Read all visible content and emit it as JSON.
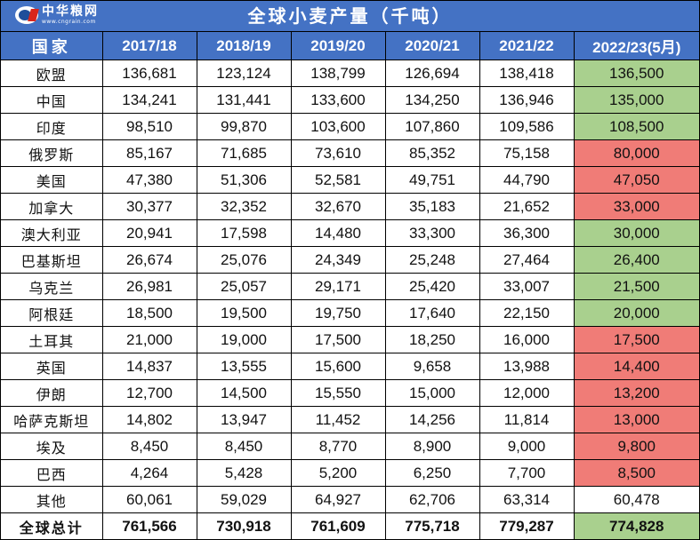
{
  "logo": {
    "name_cn": "中华粮网",
    "url_text": "www.cngrain.com"
  },
  "title": "全球小麦产量（千吨）",
  "colors": {
    "header_bg": "#4472c4",
    "increase_green": "#a9d08e",
    "decrease_red": "#f07c77"
  },
  "table": {
    "headers": [
      "国家",
      "2017/18",
      "2018/19",
      "2019/20",
      "2020/21",
      "2021/22",
      "2022/23(5月)"
    ],
    "rows": [
      {
        "country": "欧盟",
        "values": [
          "136,681",
          "123,124",
          "138,799",
          "126,694",
          "138,418",
          "136,500"
        ],
        "highlight": "green"
      },
      {
        "country": "中国",
        "values": [
          "134,241",
          "131,441",
          "133,600",
          "134,250",
          "136,946",
          "135,000"
        ],
        "highlight": "green"
      },
      {
        "country": "印度",
        "values": [
          "98,510",
          "99,870",
          "103,600",
          "107,860",
          "109,586",
          "108,500"
        ],
        "highlight": "green"
      },
      {
        "country": "俄罗斯",
        "values": [
          "85,167",
          "71,685",
          "73,610",
          "85,352",
          "75,158",
          "80,000"
        ],
        "highlight": "red"
      },
      {
        "country": "美国",
        "values": [
          "47,380",
          "51,306",
          "52,581",
          "49,751",
          "44,790",
          "47,050"
        ],
        "highlight": "red"
      },
      {
        "country": "加拿大",
        "values": [
          "30,377",
          "32,352",
          "32,670",
          "35,183",
          "21,652",
          "33,000"
        ],
        "highlight": "red"
      },
      {
        "country": "澳大利亚",
        "values": [
          "20,941",
          "17,598",
          "14,480",
          "33,300",
          "36,300",
          "30,000"
        ],
        "highlight": "green"
      },
      {
        "country": "巴基斯坦",
        "values": [
          "26,674",
          "25,076",
          "24,349",
          "25,248",
          "27,464",
          "26,400"
        ],
        "highlight": "green"
      },
      {
        "country": "乌克兰",
        "values": [
          "26,981",
          "25,057",
          "29,171",
          "25,420",
          "33,007",
          "21,500"
        ],
        "highlight": "green"
      },
      {
        "country": "阿根廷",
        "values": [
          "18,500",
          "19,500",
          "19,750",
          "17,640",
          "22,150",
          "20,000"
        ],
        "highlight": "green"
      },
      {
        "country": "土耳其",
        "values": [
          "21,000",
          "19,000",
          "17,500",
          "18,250",
          "16,000",
          "17,500"
        ],
        "highlight": "red"
      },
      {
        "country": "英国",
        "values": [
          "14,837",
          "13,555",
          "15,600",
          "9,658",
          "13,988",
          "14,400"
        ],
        "highlight": "red"
      },
      {
        "country": "伊朗",
        "values": [
          "12,700",
          "14,500",
          "15,550",
          "15,000",
          "12,000",
          "13,200"
        ],
        "highlight": "red"
      },
      {
        "country": "哈萨克斯坦",
        "values": [
          "14,802",
          "13,947",
          "11,452",
          "14,256",
          "11,814",
          "13,000"
        ],
        "highlight": "red"
      },
      {
        "country": "埃及",
        "values": [
          "8,450",
          "8,450",
          "8,770",
          "8,900",
          "9,000",
          "9,800"
        ],
        "highlight": "red"
      },
      {
        "country": "巴西",
        "values": [
          "4,264",
          "5,428",
          "5,200",
          "6,250",
          "7,700",
          "8,500"
        ],
        "highlight": "red"
      },
      {
        "country": "其他",
        "values": [
          "60,061",
          "59,029",
          "64,927",
          "62,706",
          "63,314",
          "60,478"
        ],
        "highlight": "white"
      },
      {
        "country": "全球总计",
        "values": [
          "761,566",
          "730,918",
          "761,609",
          "775,718",
          "779,287",
          "774,828"
        ],
        "highlight": "green",
        "total": true
      }
    ]
  }
}
